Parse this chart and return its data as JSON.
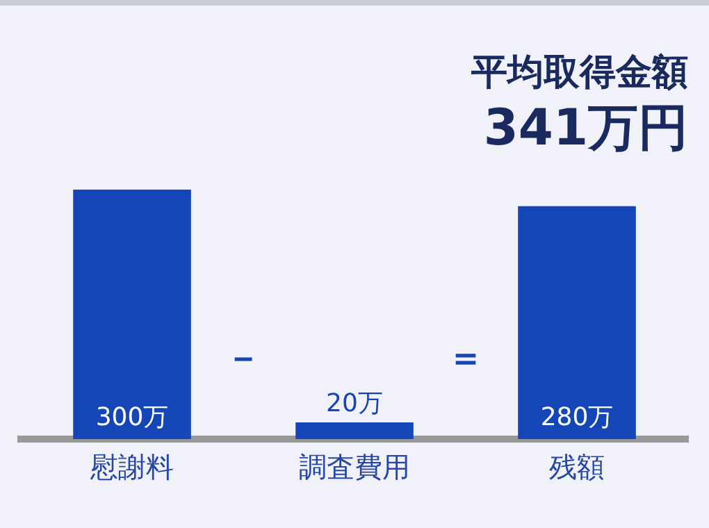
{
  "chart_data": {
    "type": "bar",
    "title": "平均取得金額",
    "subtitle": "341万円",
    "categories": [
      "慰謝料",
      "調査費用",
      "残額"
    ],
    "values": [
      300,
      20,
      280
    ],
    "value_labels": [
      "300万",
      "20万",
      "280万"
    ],
    "color": "#1446b8",
    "annotations": [
      "－",
      "＝"
    ],
    "grid": false,
    "legend": false
  }
}
